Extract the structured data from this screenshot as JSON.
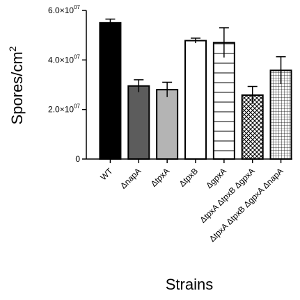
{
  "chart_data": {
    "type": "bar",
    "title": "",
    "xlabel": "Strains",
    "ylabel": "Spores/cm",
    "ylabel_superscript": "2",
    "ylim": [
      0,
      60000000
    ],
    "y_ticks": [
      {
        "value": 0,
        "mantissa": "0",
        "exponent": ""
      },
      {
        "value": 20000000,
        "mantissa": "2.0×10",
        "exponent": "07"
      },
      {
        "value": 40000000,
        "mantissa": "4.0×10",
        "exponent": "07"
      },
      {
        "value": 60000000,
        "mantissa": "6.0×10",
        "exponent": "07"
      }
    ],
    "categories": [
      "WT",
      "ΔnapA",
      "ΔtpxA",
      "ΔtpxB",
      "ΔgpxA",
      "ΔtpxA ΔtpxB ΔgpxA",
      "ΔtpxA ΔtpxB ΔgpxA ΔnapA"
    ],
    "values": [
      55000000,
      29500000,
      28000000,
      47800000,
      47000000,
      25800000,
      35800000
    ],
    "errors": [
      1500000,
      2500000,
      3000000,
      1000000,
      6000000,
      3500000,
      5500000
    ],
    "bar_styles": [
      "solid-black",
      "solid-darkgray",
      "solid-lightgray",
      "white",
      "white-hlines",
      "crosshatch",
      "grid"
    ],
    "grid": false,
    "legend": "none"
  }
}
